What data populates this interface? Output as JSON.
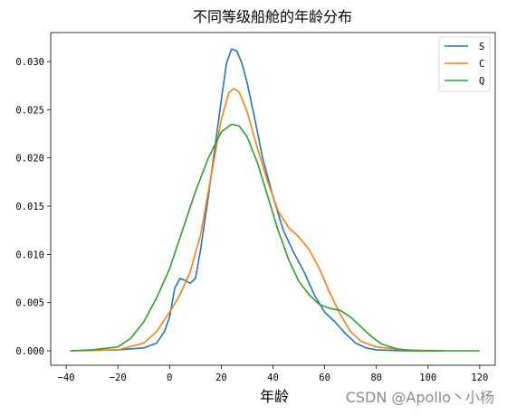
{
  "chart_data": {
    "type": "line",
    "title": "不同等级船舱的年龄分布",
    "xlabel": "年龄",
    "ylabel": "",
    "xlim": [
      -46,
      126
    ],
    "ylim": [
      -0.0015,
      0.033
    ],
    "x_ticks": [
      -40,
      -20,
      0,
      20,
      40,
      60,
      80,
      100,
      120
    ],
    "x_tick_labels": [
      "−40",
      "−20",
      "0",
      "20",
      "40",
      "60",
      "80",
      "100",
      "120"
    ],
    "y_ticks": [
      0.0,
      0.005,
      0.01,
      0.015,
      0.02,
      0.025,
      0.03
    ],
    "y_tick_labels": [
      "0.000",
      "0.005",
      "0.010",
      "0.015",
      "0.020",
      "0.025",
      "0.030"
    ],
    "legend_position": "top-right",
    "grid": false,
    "series": [
      {
        "name": "S",
        "color": "#1f77b4",
        "points": [
          [
            -38.5,
            0
          ],
          [
            -20,
            0.0001
          ],
          [
            -10,
            0.0003
          ],
          [
            -5,
            0.0008
          ],
          [
            -2,
            0.002
          ],
          [
            0,
            0.0035
          ],
          [
            2,
            0.0065
          ],
          [
            4,
            0.0075
          ],
          [
            6,
            0.0073
          ],
          [
            8,
            0.007
          ],
          [
            10,
            0.0075
          ],
          [
            12,
            0.0105
          ],
          [
            15,
            0.016
          ],
          [
            18,
            0.022
          ],
          [
            20,
            0.026
          ],
          [
            22,
            0.0298
          ],
          [
            24,
            0.0313
          ],
          [
            26,
            0.0311
          ],
          [
            28,
            0.0298
          ],
          [
            30,
            0.0278
          ],
          [
            33,
            0.024
          ],
          [
            36,
            0.02
          ],
          [
            40,
            0.016
          ],
          [
            44,
            0.0125
          ],
          [
            48,
            0.0102
          ],
          [
            52,
            0.0082
          ],
          [
            56,
            0.0058
          ],
          [
            60,
            0.004
          ],
          [
            64,
            0.003
          ],
          [
            68,
            0.0018
          ],
          [
            72,
            0.0008
          ],
          [
            76,
            0.0003
          ],
          [
            80,
            0.0001
          ],
          [
            90,
            0
          ],
          [
            106,
            0
          ]
        ]
      },
      {
        "name": "C",
        "color": "#ff7f0e",
        "points": [
          [
            -35,
            0
          ],
          [
            -20,
            0.0001
          ],
          [
            -10,
            0.0008
          ],
          [
            -5,
            0.002
          ],
          [
            0,
            0.004
          ],
          [
            4,
            0.0058
          ],
          [
            8,
            0.0082
          ],
          [
            12,
            0.012
          ],
          [
            16,
            0.018
          ],
          [
            20,
            0.024
          ],
          [
            23,
            0.0268
          ],
          [
            25,
            0.0272
          ],
          [
            27,
            0.0268
          ],
          [
            30,
            0.0248
          ],
          [
            34,
            0.021
          ],
          [
            38,
            0.0175
          ],
          [
            42,
            0.0145
          ],
          [
            46,
            0.0128
          ],
          [
            50,
            0.0118
          ],
          [
            54,
            0.0105
          ],
          [
            58,
            0.0085
          ],
          [
            62,
            0.006
          ],
          [
            66,
            0.0038
          ],
          [
            70,
            0.002
          ],
          [
            74,
            0.001
          ],
          [
            80,
            0.0004
          ],
          [
            90,
            0.0001
          ],
          [
            106,
            0
          ]
        ]
      },
      {
        "name": "Q",
        "color": "#2ca02c",
        "points": [
          [
            -38,
            0
          ],
          [
            -30,
            0.0001
          ],
          [
            -20,
            0.0004
          ],
          [
            -15,
            0.0013
          ],
          [
            -10,
            0.003
          ],
          [
            -5,
            0.0055
          ],
          [
            0,
            0.0085
          ],
          [
            5,
            0.0125
          ],
          [
            10,
            0.0165
          ],
          [
            15,
            0.02
          ],
          [
            20,
            0.0227
          ],
          [
            24,
            0.0235
          ],
          [
            27,
            0.0233
          ],
          [
            30,
            0.0222
          ],
          [
            34,
            0.0195
          ],
          [
            38,
            0.016
          ],
          [
            42,
            0.0125
          ],
          [
            46,
            0.0095
          ],
          [
            50,
            0.0072
          ],
          [
            54,
            0.0058
          ],
          [
            58,
            0.0048
          ],
          [
            62,
            0.0044
          ],
          [
            66,
            0.0042
          ],
          [
            70,
            0.0035
          ],
          [
            74,
            0.0025
          ],
          [
            78,
            0.0015
          ],
          [
            82,
            0.0007
          ],
          [
            88,
            0.0002
          ],
          [
            95,
            0
          ],
          [
            120,
            0
          ]
        ]
      }
    ]
  },
  "watermark": "CSDN @Apollo丶小杨"
}
